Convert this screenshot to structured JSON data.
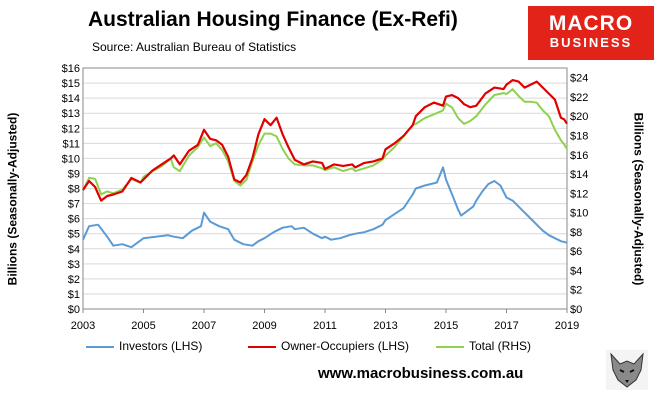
{
  "header": {
    "title": "Australian Housing Finance (Ex-Refi)",
    "source": "Source: Australian Bureau of Statistics"
  },
  "logo": {
    "line1": "MACRO",
    "line2": "BUSINESS"
  },
  "footer": {
    "url": "www.macrobusiness.com.au"
  },
  "colors": {
    "investors": "#5b9bd5",
    "owner": "#e00000",
    "total": "#8fd14f",
    "axis": "#888888",
    "brand": "#e2231a"
  },
  "chart_data": {
    "type": "line",
    "title": "Australian Housing Finance (Ex-Refi)",
    "ylabel": "Billions (Seasonally-Adjusted)",
    "y2label": "Billions (Seasonally-Adjusted)",
    "xlim": [
      2003,
      2019
    ],
    "ylim": [
      0,
      16
    ],
    "y2lim": [
      0,
      25
    ],
    "x_ticks": [
      "2003",
      "2005",
      "2007",
      "2009",
      "2011",
      "2013",
      "2015",
      "2017",
      "2019"
    ],
    "y_ticks": [
      "$0",
      "$1",
      "$2",
      "$3",
      "$4",
      "$5",
      "$6",
      "$7",
      "$8",
      "$9",
      "$10",
      "$11",
      "$12",
      "$13",
      "$14",
      "$15",
      "$16"
    ],
    "y2_ticks": [
      "$0",
      "$2",
      "$4",
      "$6",
      "$8",
      "$10",
      "$12",
      "$14",
      "$16",
      "$18",
      "$20",
      "$22",
      "$24"
    ],
    "grid": true,
    "legend": "bottom",
    "series": [
      {
        "name": "Investors (LHS)",
        "axis": "left",
        "color": "#5b9bd5",
        "x": [
          2003.0,
          2003.2,
          2003.5,
          2003.8,
          2004.0,
          2004.3,
          2004.6,
          2005.0,
          2005.4,
          2005.8,
          2006.0,
          2006.3,
          2006.6,
          2006.9,
          2007.0,
          2007.2,
          2007.5,
          2007.8,
          2008.0,
          2008.3,
          2008.6,
          2008.8,
          2009.0,
          2009.3,
          2009.6,
          2009.9,
          2010.0,
          2010.3,
          2010.6,
          2010.9,
          2011.0,
          2011.2,
          2011.5,
          2011.8,
          2012.0,
          2012.3,
          2012.6,
          2012.9,
          2013.0,
          2013.3,
          2013.6,
          2013.9,
          2014.0,
          2014.3,
          2014.5,
          2014.7,
          2014.9,
          2015.0,
          2015.2,
          2015.4,
          2015.5,
          2015.7,
          2015.9,
          2016.0,
          2016.2,
          2016.4,
          2016.6,
          2016.8,
          2017.0,
          2017.2,
          2017.4,
          2017.6,
          2017.8,
          2018.0,
          2018.2,
          2018.4,
          2018.6,
          2018.8,
          2019.0
        ],
        "values": [
          4.6,
          5.5,
          5.6,
          4.8,
          4.2,
          4.3,
          4.1,
          4.7,
          4.8,
          4.9,
          4.8,
          4.7,
          5.2,
          5.5,
          6.4,
          5.8,
          5.5,
          5.3,
          4.6,
          4.3,
          4.2,
          4.5,
          4.7,
          5.1,
          5.4,
          5.5,
          5.3,
          5.4,
          5.0,
          4.7,
          4.8,
          4.6,
          4.7,
          4.9,
          5.0,
          5.1,
          5.3,
          5.6,
          5.9,
          6.3,
          6.7,
          7.6,
          8.0,
          8.2,
          8.3,
          8.4,
          9.4,
          8.6,
          7.6,
          6.6,
          6.2,
          6.5,
          6.8,
          7.2,
          7.8,
          8.3,
          8.5,
          8.2,
          7.4,
          7.2,
          6.8,
          6.4,
          6.0,
          5.6,
          5.2,
          4.9,
          4.7,
          4.5,
          4.4
        ]
      },
      {
        "name": "Owner-Occupiers (LHS)",
        "axis": "left",
        "color": "#e00000",
        "x": [
          2003.0,
          2003.2,
          2003.4,
          2003.6,
          2003.8,
          2004.0,
          2004.3,
          2004.6,
          2004.9,
          2005.0,
          2005.3,
          2005.6,
          2005.9,
          2006.0,
          2006.2,
          2006.5,
          2006.8,
          2007.0,
          2007.2,
          2007.4,
          2007.6,
          2007.8,
          2008.0,
          2008.2,
          2008.4,
          2008.6,
          2008.8,
          2009.0,
          2009.2,
          2009.4,
          2009.6,
          2009.8,
          2010.0,
          2010.3,
          2010.6,
          2010.9,
          2011.0,
          2011.3,
          2011.6,
          2011.9,
          2012.0,
          2012.3,
          2012.6,
          2012.9,
          2013.0,
          2013.3,
          2013.6,
          2013.9,
          2014.0,
          2014.3,
          2014.6,
          2014.9,
          2015.0,
          2015.2,
          2015.4,
          2015.6,
          2015.8,
          2016.0,
          2016.3,
          2016.6,
          2016.9,
          2017.0,
          2017.2,
          2017.4,
          2017.6,
          2017.8,
          2018.0,
          2018.2,
          2018.4,
          2018.6,
          2018.8,
          2018.9,
          2019.0
        ],
        "values": [
          7.9,
          8.5,
          8.1,
          7.2,
          7.5,
          7.6,
          7.8,
          8.7,
          8.4,
          8.6,
          9.2,
          9.6,
          10.0,
          10.2,
          9.6,
          10.5,
          10.9,
          11.9,
          11.3,
          11.2,
          10.9,
          10.1,
          8.6,
          8.4,
          8.9,
          10.0,
          11.6,
          12.6,
          12.2,
          12.7,
          11.6,
          10.7,
          9.9,
          9.6,
          9.8,
          9.7,
          9.3,
          9.6,
          9.5,
          9.6,
          9.4,
          9.7,
          9.8,
          10.0,
          10.6,
          11.0,
          11.5,
          12.2,
          12.8,
          13.4,
          13.7,
          13.5,
          14.1,
          14.2,
          14.0,
          13.6,
          13.4,
          13.5,
          14.3,
          14.7,
          14.6,
          14.9,
          15.2,
          15.1,
          14.7,
          14.9,
          15.1,
          14.7,
          14.3,
          13.9,
          12.7,
          12.6,
          12.3
        ]
      },
      {
        "name": "Total (RHS)",
        "axis": "right",
        "color": "#8fd14f",
        "x": [
          2003.0,
          2003.2,
          2003.4,
          2003.6,
          2003.8,
          2004.0,
          2004.3,
          2004.6,
          2004.9,
          2005.0,
          2005.3,
          2005.6,
          2005.9,
          2006.0,
          2006.2,
          2006.5,
          2006.8,
          2007.0,
          2007.2,
          2007.4,
          2007.6,
          2007.8,
          2008.0,
          2008.2,
          2008.4,
          2008.6,
          2008.8,
          2009.0,
          2009.2,
          2009.4,
          2009.6,
          2009.8,
          2010.0,
          2010.3,
          2010.6,
          2010.9,
          2011.0,
          2011.3,
          2011.6,
          2011.9,
          2012.0,
          2012.3,
          2012.6,
          2012.9,
          2013.0,
          2013.3,
          2013.6,
          2013.9,
          2014.0,
          2014.3,
          2014.6,
          2014.9,
          2015.0,
          2015.2,
          2015.4,
          2015.6,
          2015.8,
          2016.0,
          2016.3,
          2016.6,
          2016.9,
          2017.0,
          2017.2,
          2017.4,
          2017.6,
          2017.8,
          2018.0,
          2018.2,
          2018.4,
          2018.6,
          2018.8,
          2018.9,
          2019.0
        ],
        "values": [
          12.3,
          13.6,
          13.5,
          11.9,
          12.2,
          12.0,
          12.4,
          13.5,
          13.1,
          13.7,
          14.3,
          14.8,
          15.6,
          14.7,
          14.3,
          15.9,
          16.8,
          17.8,
          16.9,
          17.2,
          16.5,
          15.3,
          13.3,
          12.8,
          13.4,
          15.3,
          17.0,
          18.2,
          18.2,
          17.9,
          16.6,
          15.6,
          15.0,
          14.9,
          14.9,
          14.6,
          14.4,
          14.7,
          14.3,
          14.6,
          14.3,
          14.6,
          14.9,
          15.5,
          15.9,
          16.8,
          17.9,
          19.1,
          19.2,
          19.8,
          20.2,
          20.6,
          21.3,
          20.9,
          19.8,
          19.2,
          19.5,
          20.0,
          21.2,
          22.2,
          22.4,
          22.3,
          22.8,
          22.1,
          21.5,
          21.5,
          21.4,
          20.6,
          20.0,
          18.6,
          17.5,
          17.1,
          16.6
        ]
      }
    ]
  }
}
